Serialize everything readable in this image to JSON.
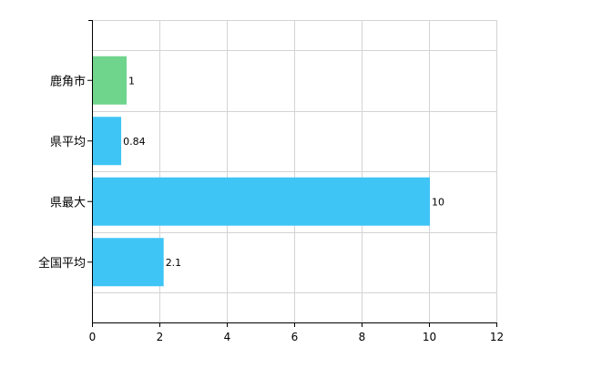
{
  "chart_data": {
    "type": "bar",
    "orientation": "horizontal",
    "categories": [
      "鹿角市",
      "県平均",
      "県最大",
      "全国平均"
    ],
    "values": [
      1,
      0.84,
      10,
      2.1
    ],
    "data_labels": [
      "1",
      "0.84",
      "10",
      "2.1"
    ],
    "bar_colors": [
      "#6fd48c",
      "#3ec5f5",
      "#3ec5f5",
      "#3ec5f5"
    ],
    "xlim": [
      0,
      12
    ],
    "xticks": [
      0,
      2,
      4,
      6,
      8,
      10,
      12
    ],
    "xtick_labels": [
      "0",
      "2",
      "4",
      "6",
      "8",
      "10",
      "12"
    ],
    "title": "",
    "xlabel": "",
    "ylabel": "",
    "grid": true,
    "legend": "none"
  }
}
